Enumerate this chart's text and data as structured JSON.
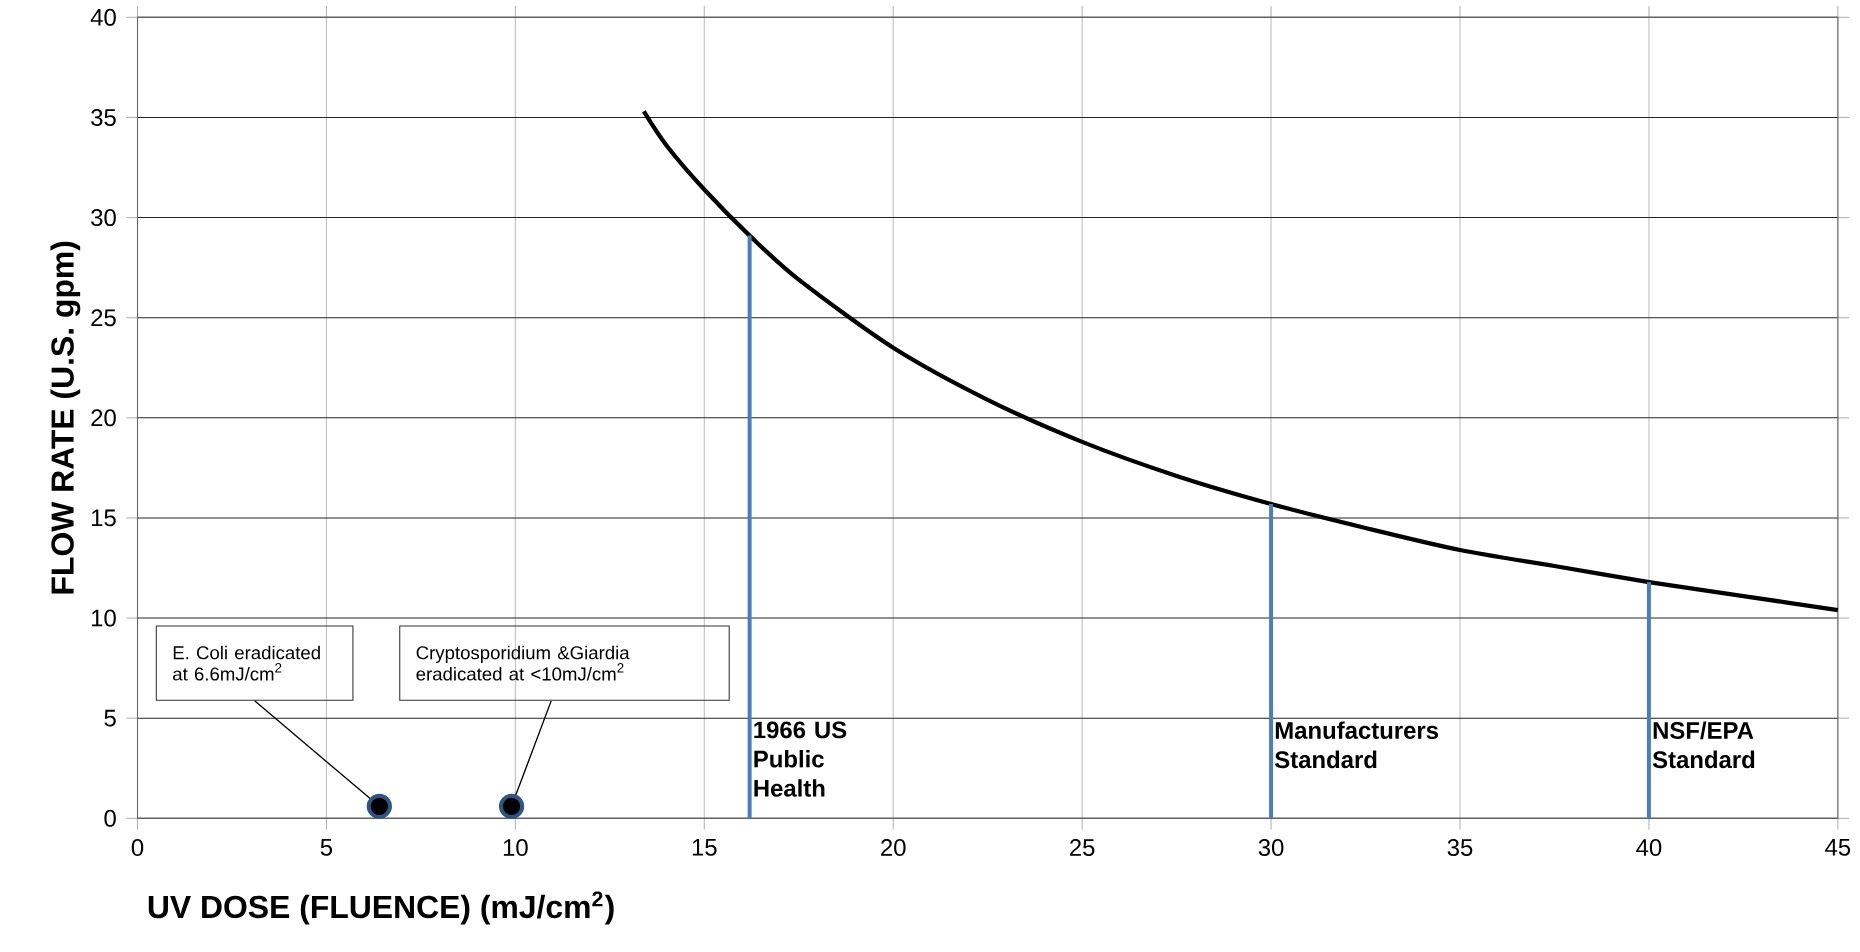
{
  "chart_data": {
    "type": "line",
    "xlabel": "UV DOSE (FLUENCE) (mJ/cm$^{2}$)",
    "ylabel": "FLOW RATE (U.S. gpm)",
    "xlim": [
      0,
      45
    ],
    "ylim": [
      0,
      40
    ],
    "xticks": [
      0,
      5,
      10,
      15,
      20,
      25,
      30,
      35,
      40,
      45
    ],
    "yticks": [
      0,
      5,
      10,
      15,
      20,
      25,
      30,
      35,
      40
    ],
    "grid": true,
    "series": [
      {
        "color": "#000000",
        "marker": "none",
        "x": [
          13.4,
          14,
          15,
          16.2,
          17.5,
          20,
          22.5,
          25,
          27.5,
          30,
          32.5,
          35,
          37.5,
          40,
          42.5,
          45
        ],
        "values": [
          35.3,
          33.6,
          31.4,
          29.1,
          26.9,
          23.5,
          20.9,
          18.8,
          17.1,
          15.7,
          14.5,
          13.4,
          12.6,
          11.8,
          11.1,
          10.4
        ]
      },
      {
        "type": "scatter",
        "color": "#2f5586",
        "marker": "circle",
        "x": [
          6.4,
          9.9
        ],
        "values": [
          0.6,
          0.6
        ]
      }
    ],
    "ref_lines": [
      {
        "axis": "x",
        "value": 16.2,
        "label": "1966 US Public Health",
        "color": "#4a7ebb"
      },
      {
        "axis": "x",
        "value": 30,
        "label": "Manufacturers Standard",
        "color": "#4a7ebb"
      },
      {
        "axis": "x",
        "value": 40,
        "label": "NSF/EPA Standard",
        "color": "#4a7ebb"
      }
    ],
    "annotations": [
      {
        "text": "E. Coli eradicated at 6.6mJ/cm$^{2}$",
        "x": 6.4,
        "y": 0.6
      },
      {
        "text": "Cryptosporidium &Giardia eradicated at  <10mJ/cm$^{2}$",
        "x": 9.9,
        "y": 0.6
      }
    ]
  }
}
